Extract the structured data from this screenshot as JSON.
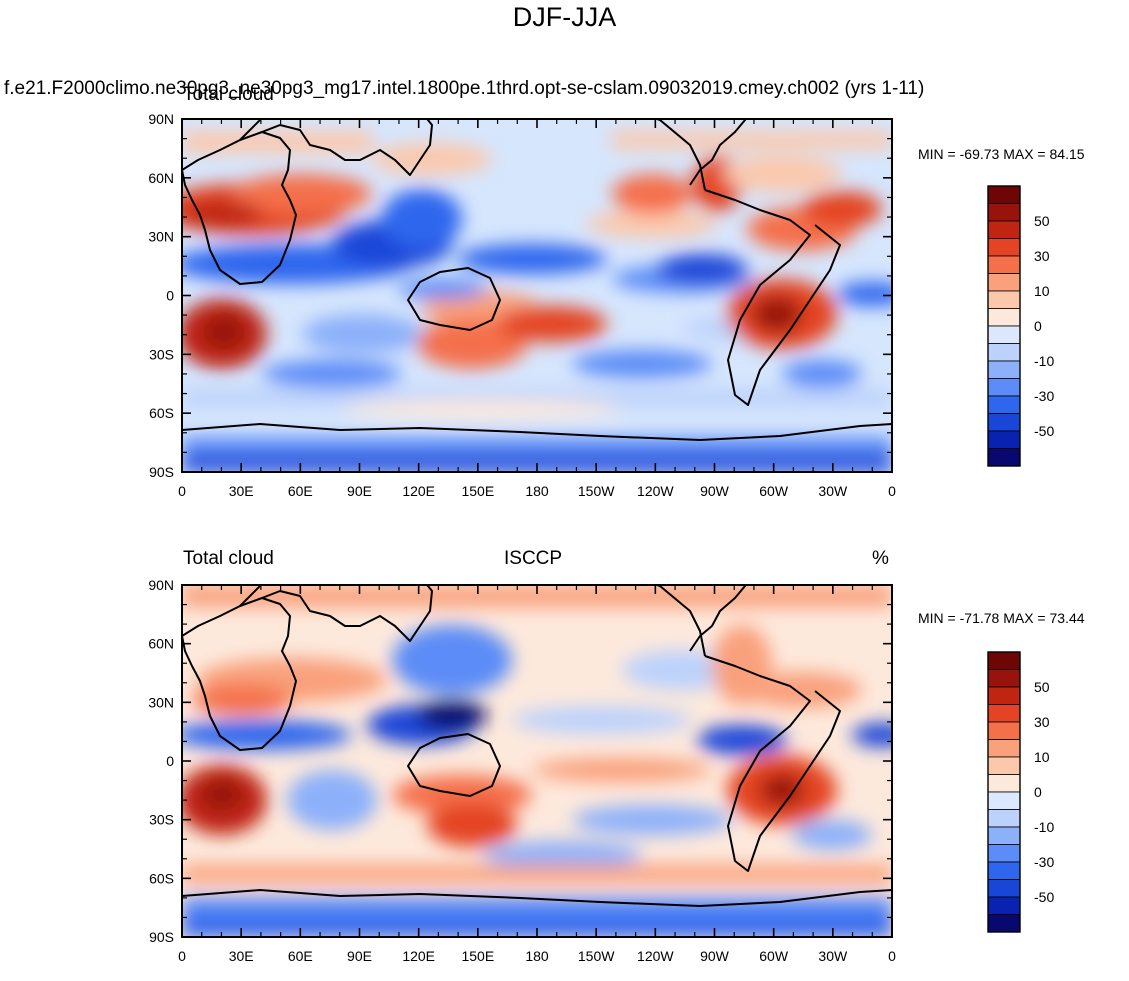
{
  "figure": {
    "title": "DJF-JJA",
    "case_label": "f.e21.F2000climo.ne30pg3_ne30pg3_mg17.intel.1800pe.1thrd.opt-se-cslam.09032019.cmey.ch002 (yrs 1-11)"
  },
  "panels": [
    {
      "left_label": "Total cloud",
      "center_label": "",
      "right_label": "",
      "minmax": "MIN = -69.73 MAX =  84.15"
    },
    {
      "left_label": "Total cloud",
      "center_label": "ISCCP",
      "right_label": "%",
      "minmax": "MIN = -71.78 MAX =  73.44"
    }
  ],
  "axes": {
    "lat_ticks": [
      "90N",
      "60N",
      "30N",
      "0",
      "30S",
      "60S",
      "90S"
    ],
    "lon_ticks": [
      "0",
      "30E",
      "60E",
      "90E",
      "120E",
      "150E",
      "180",
      "150W",
      "120W",
      "90W",
      "60W",
      "30W",
      "0"
    ]
  },
  "colorbar": {
    "labels": [
      "50",
      "30",
      "10",
      "0",
      "-10",
      "-30",
      "-50"
    ],
    "levels": [
      -60,
      -50,
      -40,
      -30,
      -20,
      -10,
      -5,
      0,
      5,
      10,
      20,
      30,
      40,
      50,
      60
    ],
    "colors": [
      "#08086e",
      "#0a22b0",
      "#1a46d8",
      "#2f66ee",
      "#5b8cf7",
      "#8cb0fa",
      "#bcd2fc",
      "#dbe8fd",
      "#fde9dc",
      "#fcc8ac",
      "#f9a07c",
      "#f4704b",
      "#e44424",
      "#c02512",
      "#98130b",
      "#6e0606"
    ]
  }
}
